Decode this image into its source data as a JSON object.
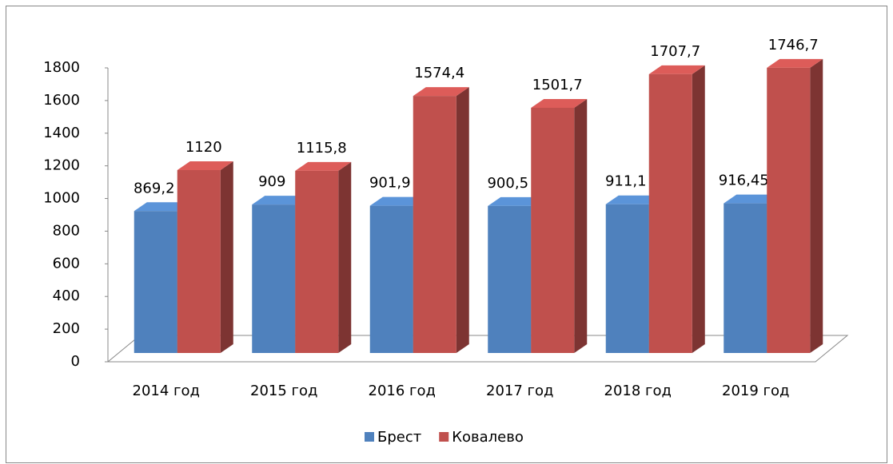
{
  "chart_data": {
    "type": "bar3d",
    "categories": [
      "2014 год",
      "2015 год",
      "2016 год",
      "2017 год",
      "2018 год",
      "2019 год"
    ],
    "series": [
      {
        "name": "Брест",
        "color": "#4f81bd",
        "values": [
          869.2,
          909,
          901.9,
          900.5,
          911.1,
          916.45
        ],
        "value_labels": [
          "869,2",
          "909",
          "901,9",
          "900,5",
          "911,1",
          "916,45"
        ]
      },
      {
        "name": "Ковалево",
        "color": "#c0504d",
        "values": [
          1120,
          1115.8,
          1574.4,
          1501.7,
          1707.7,
          1746.7
        ],
        "value_labels": [
          "1120",
          "1115,8",
          "1574,4",
          "1501,7",
          "1707,7",
          "1746,7"
        ]
      }
    ],
    "ylim": [
      0,
      1800
    ],
    "yticks": [
      0,
      200,
      400,
      600,
      800,
      1000,
      1200,
      1400,
      1600,
      1800
    ],
    "legend": "bottom"
  }
}
